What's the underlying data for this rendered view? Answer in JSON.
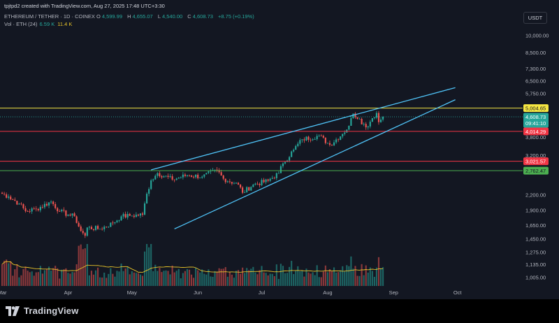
{
  "header": {
    "created_by": "tpjtpd2 created with TradingView.com, Aug 27, 2025 17:48 UTC+3:30",
    "symbol": "ETHEREUM / TETHER · 1D · COINEX",
    "o_label": "O",
    "o_value": "4,599.99",
    "h_label": "H",
    "h_value": "4,655.07",
    "l_label": "L",
    "l_value": "4,540.00",
    "c_label": "C",
    "c_value": "4,608.73",
    "change": "+8.75 (+0.19%)",
    "volume_label": "Vol · ETH (24)",
    "volume_value": "6.59 K",
    "volume_ma_value": "11.4 K",
    "currency_button": "USDT"
  },
  "brand": {
    "name": "TradingView"
  },
  "colors": {
    "background": "#131722",
    "up": "#26a69a",
    "down": "#ef5350",
    "channel": "#4fc3f7",
    "resistance": "#f5e642",
    "support_red": "#f23645",
    "support_green": "#4caf50",
    "volume_ma": "#e6c229"
  },
  "chart_data": {
    "type": "candlestick",
    "title": "ETHEREUM / TETHER · 1D · COINEX",
    "scale": "log",
    "ylim": [
      925,
      11000
    ],
    "grid": false,
    "y_tick_labels": [
      "10,000.00",
      "8,500.00",
      "7,300.00",
      "6,500.00",
      "5,750.00",
      "3,800.00",
      "3,200.00",
      "2,800.00",
      "2,200.00",
      "1,900.00",
      "1,650.00",
      "1,450.00",
      "1,275.00",
      "1,135.00",
      "1,005.00"
    ],
    "y_ticks": [
      10000,
      8500,
      7300,
      6500,
      5750,
      3800,
      3200,
      2800,
      2200,
      1900,
      1650,
      1450,
      1275,
      1135,
      1005
    ],
    "x_tick_labels": [
      "Mar",
      "Apr",
      "May",
      "Jun",
      "Jul",
      "Aug",
      "Sep",
      "Oct"
    ],
    "x_ticks": [
      "2025-03-01",
      "2025-04-01",
      "2025-05-01",
      "2025-06-01",
      "2025-07-01",
      "2025-08-01",
      "2025-09-01",
      "2025-10-01"
    ],
    "x_range": [
      "2025-02-28",
      "2025-10-31"
    ],
    "horizontal_levels": [
      {
        "value": 5004.65,
        "label": "5,004.65",
        "color": "#f5e642",
        "text_color": "#131722"
      },
      {
        "value": 4014.29,
        "label": "4,014.29",
        "color": "#f23645",
        "text_color": "#ffffff"
      },
      {
        "value": 3021.57,
        "label": "3,021.57",
        "color": "#f23645",
        "text_color": "#ffffff"
      },
      {
        "value": 2762.47,
        "label": "2,762.47",
        "color": "#4caf50",
        "text_color": "#131722"
      }
    ],
    "last_price": {
      "value": 4608.73,
      "label": "4,608.73",
      "countdown": "09:41:10"
    },
    "channel_lines": [
      {
        "name": "upper",
        "start": [
          "2025-05-10",
          2785
        ],
        "end": [
          "2025-09-30",
          6080
        ]
      },
      {
        "name": "lower",
        "start": [
          "2025-05-21",
          1590
        ],
        "end": [
          "2025-09-30",
          5420
        ]
      }
    ],
    "price_anchors": [
      [
        "2025-02-28",
        2240
      ],
      [
        "2025-03-04",
        2160
      ],
      [
        "2025-03-09",
        2020
      ],
      [
        "2025-03-12",
        1880
      ],
      [
        "2025-03-17",
        1920
      ],
      [
        "2025-03-24",
        2060
      ],
      [
        "2025-03-28",
        1880
      ],
      [
        "2025-04-01",
        1820
      ],
      [
        "2025-04-04",
        1790
      ],
      [
        "2025-04-07",
        1560
      ],
      [
        "2025-04-09",
        1490
      ],
      [
        "2025-04-10",
        1610
      ],
      [
        "2025-04-16",
        1590
      ],
      [
        "2025-04-22",
        1680
      ],
      [
        "2025-04-26",
        1790
      ],
      [
        "2025-04-30",
        1800
      ],
      [
        "2025-05-06",
        1820
      ],
      [
        "2025-05-08",
        2220
      ],
      [
        "2025-05-10",
        2520
      ],
      [
        "2025-05-13",
        2700
      ],
      [
        "2025-05-20",
        2540
      ],
      [
        "2025-05-27",
        2650
      ],
      [
        "2025-06-03",
        2610
      ],
      [
        "2025-06-10",
        2780
      ],
      [
        "2025-06-13",
        2560
      ],
      [
        "2025-06-20",
        2420
      ],
      [
        "2025-06-22",
        2240
      ],
      [
        "2025-06-27",
        2420
      ],
      [
        "2025-07-04",
        2510
      ],
      [
        "2025-07-09",
        2700
      ],
      [
        "2025-07-11",
        2960
      ],
      [
        "2025-07-16",
        3370
      ],
      [
        "2025-07-20",
        3720
      ],
      [
        "2025-07-28",
        3850
      ],
      [
        "2025-08-02",
        3530
      ],
      [
        "2025-08-08",
        3920
      ],
      [
        "2025-08-11",
        4230
      ],
      [
        "2025-08-13",
        4750
      ],
      [
        "2025-08-16",
        4520
      ],
      [
        "2025-08-19",
        4170
      ],
      [
        "2025-08-22",
        4550
      ],
      [
        "2025-08-24",
        4780
      ],
      [
        "2025-08-25",
        4380
      ],
      [
        "2025-08-27",
        4608.73
      ]
    ]
  }
}
